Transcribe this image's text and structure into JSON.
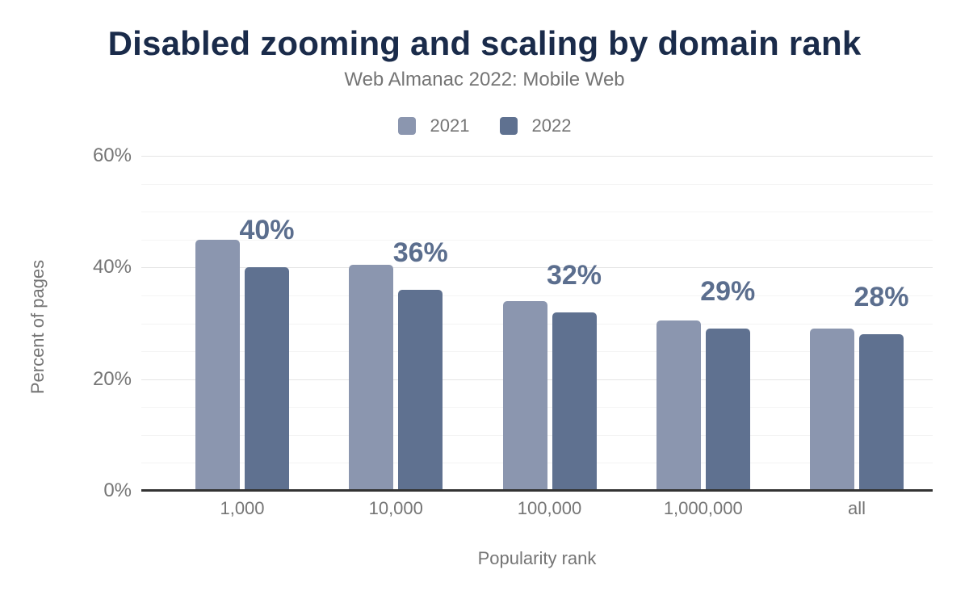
{
  "chart_data": {
    "type": "bar",
    "title": "Disabled zooming and scaling by domain rank",
    "subtitle": "Web Almanac 2022: Mobile Web",
    "categories": [
      "1,000",
      "10,000",
      "100,000",
      "1,000,000",
      "all"
    ],
    "series": [
      {
        "name": "2021",
        "color": "#8b96af",
        "values": [
          45,
          40.5,
          34,
          30.5,
          29
        ]
      },
      {
        "name": "2022",
        "color": "#5f7190",
        "values": [
          40,
          36,
          32,
          29,
          28
        ],
        "data_labels": [
          "40%",
          "36%",
          "32%",
          "29%",
          "28%"
        ]
      }
    ],
    "xlabel": "Popularity rank",
    "ylabel": "Percent of pages",
    "ylim": [
      0,
      60
    ],
    "yticks": [
      {
        "value": 0,
        "label": "0%"
      },
      {
        "value": 20,
        "label": "20%"
      },
      {
        "value": 40,
        "label": "40%"
      },
      {
        "value": 60,
        "label": "60%"
      }
    ],
    "minor_grid_step": 5,
    "grid": true,
    "legend_position": "top-center"
  },
  "colors": {
    "title": "#1a2b4a",
    "text_gray": "#757575",
    "data_label": "#5b6e8e",
    "axis_line": "#333333",
    "gridline_major": "#e4e4e4",
    "gridline_minor": "#f4f4f4",
    "series_2021": "#8b96af",
    "series_2022": "#5f7190",
    "background": "#ffffff"
  }
}
